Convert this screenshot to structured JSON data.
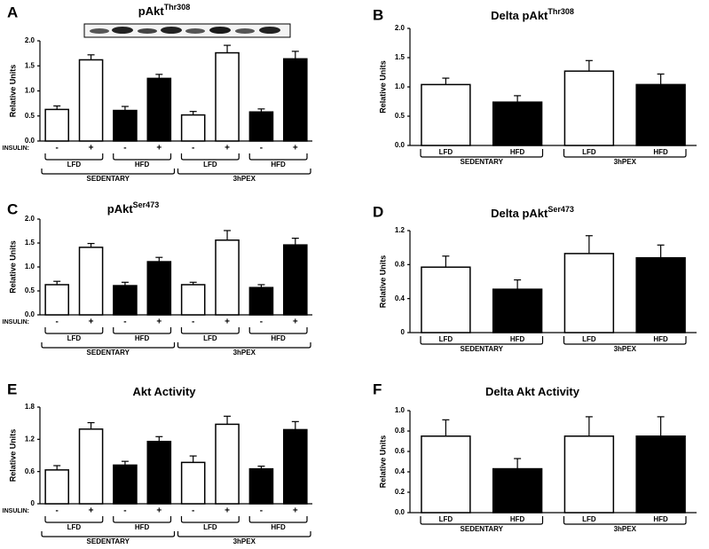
{
  "chart_data": [
    {
      "type": "bar",
      "panel": "A",
      "title": "pAkt",
      "title_superscript": "Thr308",
      "ylabel": "Relative Units",
      "insulin_label": "INSULIN:",
      "categories": [
        "-",
        "+",
        "-",
        "+",
        "-",
        "+",
        "-",
        "+"
      ],
      "values": [
        0.63,
        1.62,
        0.61,
        1.25,
        0.52,
        1.76,
        0.58,
        1.64
      ],
      "errors": [
        0.07,
        0.1,
        0.08,
        0.08,
        0.07,
        0.15,
        0.06,
        0.15
      ],
      "colors": [
        "#ffffff",
        "#ffffff",
        "#000000",
        "#000000",
        "#ffffff",
        "#ffffff",
        "#000000",
        "#000000"
      ],
      "groups": [
        "LFD",
        "HFD",
        "LFD",
        "HFD"
      ],
      "supergroups": [
        "SEDENTARY",
        "3hPEX"
      ],
      "ylim": [
        0,
        2
      ],
      "yticks": [
        {
          "value": 0,
          "label": "0.0"
        },
        0.5,
        {
          "value": 1,
          "label": "1.0"
        },
        1.5,
        {
          "value": 2,
          "label": "2.0"
        }
      ]
    },
    {
      "type": "bar",
      "panel": "B",
      "title": "Delta pAkt",
      "title_superscript": "Thr308",
      "ylabel": "Relative Units",
      "categories": [
        "LFD",
        "HFD",
        "LFD",
        "HFD"
      ],
      "values": [
        1.04,
        0.74,
        1.27,
        1.04
      ],
      "errors": [
        0.11,
        0.11,
        0.18,
        0.18
      ],
      "colors": [
        "#ffffff",
        "#000000",
        "#ffffff",
        "#000000"
      ],
      "supergroups": [
        "SEDENTARY",
        "3hPEX"
      ],
      "ylim": [
        0,
        2
      ],
      "yticks": [
        {
          "value": 0,
          "label": "0.0"
        },
        0.5,
        {
          "value": 1,
          "label": "1.0"
        },
        1.5,
        {
          "value": 2,
          "label": "2.0"
        }
      ]
    },
    {
      "type": "bar",
      "panel": "C",
      "title": "pAkt",
      "title_superscript": "Ser473",
      "ylabel": "Relative Units",
      "insulin_label": "INSULIN:",
      "categories": [
        "-",
        "+",
        "-",
        "+",
        "-",
        "+",
        "-",
        "+"
      ],
      "values": [
        0.63,
        1.41,
        0.61,
        1.11,
        0.63,
        1.56,
        0.57,
        1.46
      ],
      "errors": [
        0.07,
        0.08,
        0.07,
        0.09,
        0.05,
        0.2,
        0.06,
        0.14
      ],
      "colors": [
        "#ffffff",
        "#ffffff",
        "#000000",
        "#000000",
        "#ffffff",
        "#ffffff",
        "#000000",
        "#000000"
      ],
      "groups": [
        "LFD",
        "HFD",
        "LFD",
        "HFD"
      ],
      "supergroups": [
        "SEDENTARY",
        "3hPEX"
      ],
      "ylim": [
        0,
        2
      ],
      "yticks": [
        {
          "value": 0,
          "label": "0.0"
        },
        0.5,
        {
          "value": 1,
          "label": "1.0"
        },
        1.5,
        {
          "value": 2,
          "label": "2.0"
        }
      ]
    },
    {
      "type": "bar",
      "panel": "D",
      "title": "Delta pAkt",
      "title_superscript": "Ser473",
      "ylabel": "Relative Units",
      "categories": [
        "LFD",
        "HFD",
        "LFD",
        "HFD"
      ],
      "values": [
        0.77,
        0.51,
        0.93,
        0.88
      ],
      "errors": [
        0.13,
        0.11,
        0.21,
        0.15
      ],
      "colors": [
        "#ffffff",
        "#000000",
        "#ffffff",
        "#000000"
      ],
      "supergroups": [
        "SEDENTARY",
        "3hPEX"
      ],
      "ylim": [
        0,
        1.2
      ],
      "yticks": [
        0,
        0.4,
        0.8,
        1.2
      ]
    },
    {
      "type": "bar",
      "panel": "E",
      "title": "Akt Activity",
      "ylabel": "Relative Units",
      "insulin_label": "INSULIN:",
      "categories": [
        "-",
        "+",
        "-",
        "+",
        "-",
        "+",
        "-",
        "+"
      ],
      "values": [
        0.63,
        1.39,
        0.72,
        1.16,
        0.77,
        1.48,
        0.65,
        1.38
      ],
      "errors": [
        0.08,
        0.12,
        0.07,
        0.09,
        0.12,
        0.15,
        0.05,
        0.15
      ],
      "colors": [
        "#ffffff",
        "#ffffff",
        "#000000",
        "#000000",
        "#ffffff",
        "#ffffff",
        "#000000",
        "#000000"
      ],
      "groups": [
        "LFD",
        "HFD",
        "LFD",
        "HFD"
      ],
      "supergroups": [
        "SEDENTARY",
        "3hPEX"
      ],
      "ylim": [
        0,
        1.8
      ],
      "yticks": [
        0,
        0.6,
        1.2,
        1.8
      ]
    },
    {
      "type": "bar",
      "panel": "F",
      "title": "Delta Akt Activity",
      "ylabel": "Relative Units",
      "categories": [
        "LFD",
        "HFD",
        "LFD",
        "HFD"
      ],
      "values": [
        0.75,
        0.43,
        0.75,
        0.75
      ],
      "errors": [
        0.16,
        0.1,
        0.19,
        0.19
      ],
      "colors": [
        "#ffffff",
        "#000000",
        "#ffffff",
        "#000000"
      ],
      "supergroups": [
        "SEDENTARY",
        "3hPEX"
      ],
      "ylim": [
        0,
        1
      ],
      "yticks": [
        {
          "value": 0,
          "label": "0.0"
        },
        0.2,
        0.4,
        0.6,
        0.8,
        {
          "value": 1,
          "label": "1.0"
        }
      ]
    }
  ]
}
